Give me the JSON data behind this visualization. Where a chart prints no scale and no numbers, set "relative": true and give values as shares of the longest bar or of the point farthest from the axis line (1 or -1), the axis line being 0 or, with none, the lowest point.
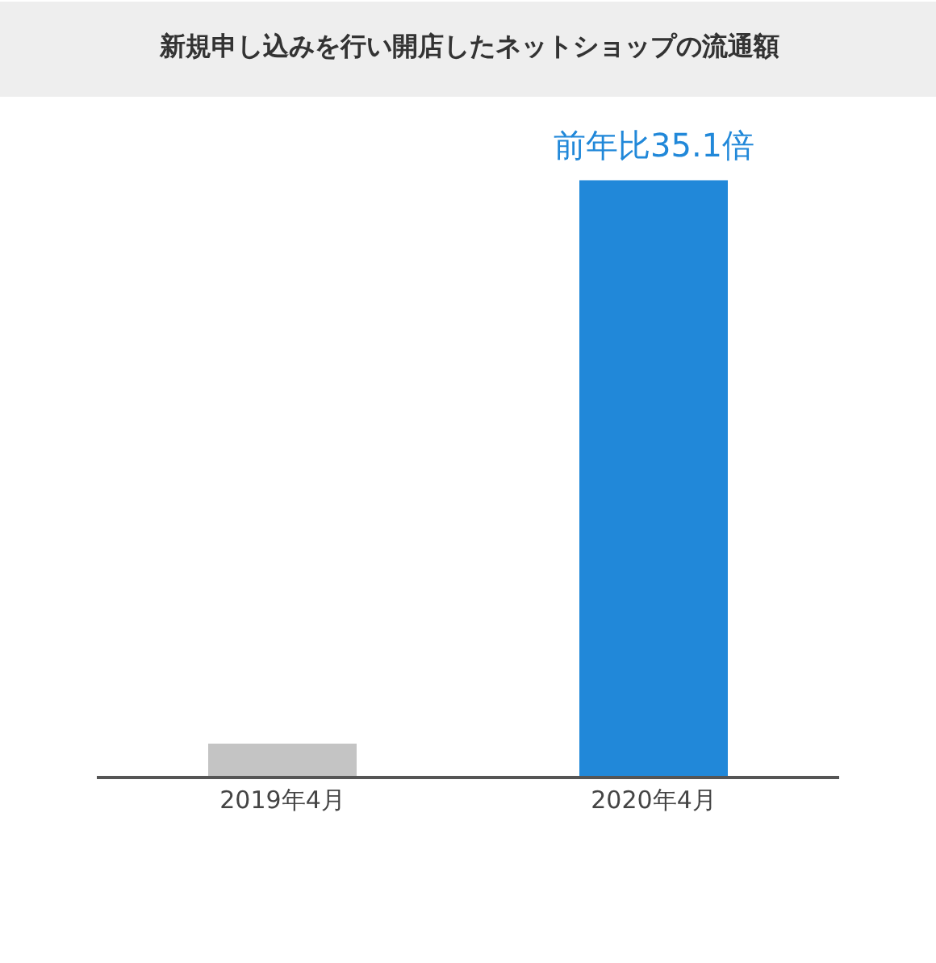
{
  "chart_data": {
    "type": "bar",
    "title": "新規申し込みを行い開店したネットショップの流通額",
    "relative": true,
    "categories": [
      "2019年4月",
      "2020年4月"
    ],
    "values": [
      0.054,
      1
    ],
    "colors": [
      "#c4c4c4",
      "#2188d9"
    ],
    "annotations": [
      {
        "text": "前年比35.1倍",
        "x": "2020年4月",
        "y": 1
      }
    ]
  }
}
